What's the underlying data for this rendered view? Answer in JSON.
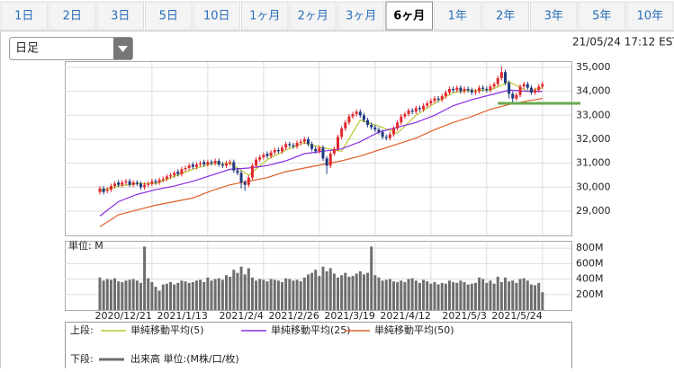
{
  "tabs": [
    "1日",
    "2日",
    "3日",
    "5日",
    "10日",
    "1ヶ月",
    "2ヶ月",
    "3ヶ月",
    "6ヶ月",
    "1年",
    "2年",
    "3年",
    "5年",
    "10年"
  ],
  "selected_tab": 8,
  "dropdown": "日足",
  "timestamp": "21/05/24 17:12 EST",
  "legend_labels": [
    "上段:",
    "下段:"
  ],
  "chart_data": [
    {
      "type": "candlestick",
      "up_color": "#e0282d",
      "down_color": "#203a80",
      "ylim": [
        27990,
        35260
      ],
      "yticks": [
        {
          "value": 29000,
          "label": "29,000"
        },
        {
          "value": 30000,
          "label": "30,000"
        },
        {
          "value": 31000,
          "label": "31,000"
        },
        {
          "value": 32000,
          "label": "32,000"
        },
        {
          "value": 33000,
          "label": "33,000"
        },
        {
          "value": 34000,
          "label": "34,000"
        },
        {
          "value": 35000,
          "label": "35,000"
        }
      ],
      "grid": true,
      "open": [
        29800,
        29950,
        29850,
        29900,
        30050,
        30200,
        30100,
        30200,
        30250,
        30100,
        30200,
        30150,
        30000,
        30100,
        30150,
        30250,
        30200,
        30300,
        30350,
        30450,
        30500,
        30650,
        30550,
        30750,
        30800,
        30950,
        30850,
        30950,
        31050,
        30950,
        31050,
        31000,
        31100,
        30950,
        30900,
        31000,
        31050,
        30700,
        30600,
        30200,
        30100,
        30400,
        30900,
        31150,
        31250,
        31400,
        31300,
        31450,
        31550,
        31500,
        31650,
        31800,
        31750,
        31700,
        31850,
        31900,
        32000,
        31800,
        31600,
        31500,
        31650,
        31200,
        30900,
        31400,
        31600,
        32100,
        32450,
        32700,
        32950,
        33050,
        33150,
        33000,
        32800,
        32600,
        32500,
        32400,
        32300,
        32100,
        32050,
        32200,
        32450,
        32700,
        32950,
        33050,
        33200,
        33150,
        33300,
        33250,
        33400,
        33500,
        33600,
        33700,
        33650,
        33800,
        33950,
        34100,
        34050,
        34150,
        34000,
        34100,
        34050,
        33950,
        34000,
        34150,
        34100,
        34050,
        34200,
        34300,
        34550,
        34800,
        34350,
        33900,
        33700,
        33850,
        34200,
        34300,
        34150,
        33950,
        34050,
        34200
      ],
      "high": [
        30050,
        30050,
        30000,
        30150,
        30250,
        30300,
        30300,
        30350,
        30350,
        30300,
        30300,
        30250,
        30200,
        30250,
        30350,
        30350,
        30400,
        30450,
        30550,
        30600,
        30700,
        30750,
        30850,
        30900,
        31000,
        31050,
        31050,
        31100,
        31150,
        31150,
        31150,
        31200,
        31200,
        31050,
        31100,
        31150,
        31150,
        30800,
        30700,
        30300,
        30500,
        31000,
        31250,
        31350,
        31450,
        31500,
        31550,
        31650,
        31650,
        31750,
        31900,
        31900,
        31850,
        31950,
        32000,
        32100,
        32100,
        31900,
        31700,
        31750,
        31750,
        31300,
        31500,
        31700,
        32200,
        32550,
        32800,
        33050,
        33150,
        33250,
        33250,
        33100,
        32900,
        32700,
        32600,
        32500,
        32400,
        32200,
        32300,
        32550,
        32800,
        33050,
        33150,
        33300,
        33300,
        33400,
        33400,
        33500,
        33600,
        33700,
        33800,
        33800,
        33900,
        34050,
        34200,
        34200,
        34250,
        34250,
        34200,
        34200,
        34150,
        34100,
        34250,
        34250,
        34200,
        34300,
        34400,
        34650,
        35050,
        34900,
        34450,
        34000,
        33950,
        34300,
        34400,
        34400,
        34250,
        34150,
        34300,
        34400
      ],
      "low": [
        29700,
        29700,
        29750,
        29800,
        29950,
        30000,
        30000,
        30100,
        30000,
        30000,
        30050,
        29900,
        29900,
        30000,
        30050,
        30100,
        30100,
        30200,
        30250,
        30350,
        30400,
        30450,
        30450,
        30650,
        30700,
        30750,
        30750,
        30850,
        30850,
        30850,
        30900,
        30900,
        30850,
        30800,
        30800,
        30900,
        30600,
        30500,
        29950,
        29850,
        30000,
        30300,
        30800,
        31050,
        31150,
        31200,
        31200,
        31350,
        31400,
        31400,
        31550,
        31650,
        31600,
        31600,
        31750,
        31800,
        31700,
        31500,
        31400,
        31400,
        31100,
        30550,
        30800,
        31300,
        31500,
        32000,
        32350,
        32600,
        32850,
        32950,
        32900,
        32700,
        32500,
        32400,
        32300,
        32200,
        32000,
        31950,
        31950,
        32100,
        32350,
        32600,
        32850,
        32950,
        33050,
        33050,
        33150,
        33150,
        33300,
        33400,
        33500,
        33550,
        33550,
        33700,
        33850,
        33950,
        33950,
        33900,
        33900,
        33950,
        33850,
        33850,
        33900,
        34000,
        33950,
        33950,
        34100,
        34200,
        34450,
        34250,
        33700,
        33550,
        33600,
        33750,
        34100,
        34050,
        33850,
        33850,
        33950,
        34100
      ],
      "close": [
        29950,
        29800,
        29900,
        30050,
        30150,
        30100,
        30200,
        30250,
        30100,
        30200,
        30150,
        30000,
        30100,
        30150,
        30250,
        30200,
        30300,
        30350,
        30450,
        30500,
        30600,
        30550,
        30750,
        30800,
        30900,
        30850,
        30950,
        31000,
        30950,
        31050,
        31000,
        31100,
        30950,
        30900,
        31000,
        31050,
        30700,
        30600,
        30200,
        30100,
        30400,
        30900,
        31150,
        31250,
        31350,
        31300,
        31450,
        31550,
        31500,
        31650,
        31800,
        31750,
        31700,
        31850,
        31900,
        32000,
        31800,
        31600,
        31500,
        31650,
        31200,
        30900,
        31400,
        31600,
        32100,
        32450,
        32700,
        32950,
        33050,
        33150,
        33000,
        32800,
        32600,
        32500,
        32400,
        32300,
        32100,
        32050,
        32200,
        32450,
        32700,
        32950,
        33050,
        33200,
        33150,
        33300,
        33250,
        33400,
        33500,
        33600,
        33700,
        33650,
        33800,
        33950,
        34100,
        34050,
        34150,
        34000,
        34100,
        34050,
        33950,
        34000,
        34150,
        34100,
        34050,
        34200,
        34300,
        34550,
        34800,
        34350,
        33900,
        33700,
        33850,
        34200,
        34300,
        34150,
        33950,
        34050,
        34200,
        34300
      ],
      "overlays": [
        {
          "name": "単純移動平均(5)",
          "color": "#b8c832",
          "x": [
            0,
            5,
            10,
            15,
            20,
            25,
            30,
            35,
            40,
            45,
            50,
            55,
            60,
            65,
            70,
            75,
            80,
            85,
            90,
            95,
            100,
            105,
            110,
            115,
            119
          ],
          "values": [
            29850,
            30050,
            30150,
            30150,
            30450,
            30750,
            30980,
            31000,
            30500,
            31150,
            31550,
            31850,
            31650,
            31500,
            32800,
            32550,
            32250,
            33000,
            33500,
            33950,
            34050,
            34050,
            34400,
            34000,
            34150
          ]
        },
        {
          "name": "単純移動平均(25)",
          "color": "#8a2be2",
          "x": [
            0,
            5,
            10,
            15,
            20,
            25,
            30,
            35,
            40,
            45,
            50,
            55,
            60,
            65,
            70,
            75,
            80,
            85,
            90,
            95,
            100,
            105,
            110,
            115,
            119
          ],
          "values": [
            28800,
            29400,
            29700,
            29900,
            30050,
            30250,
            30500,
            30750,
            30800,
            30900,
            31100,
            31400,
            31500,
            31600,
            31900,
            32300,
            32500,
            32700,
            33000,
            33400,
            33650,
            33850,
            34050,
            34000,
            34000
          ]
        },
        {
          "name": "単純移動平均(50)",
          "color": "#e0602a",
          "x": [
            0,
            5,
            10,
            15,
            20,
            25,
            30,
            35,
            40,
            45,
            50,
            55,
            60,
            65,
            70,
            75,
            80,
            85,
            90,
            95,
            100,
            105,
            110,
            115,
            119
          ],
          "values": [
            28350,
            28850,
            29050,
            29250,
            29400,
            29550,
            29850,
            30100,
            30250,
            30400,
            30650,
            30800,
            30950,
            31100,
            31300,
            31550,
            31800,
            32050,
            32400,
            32700,
            32950,
            33250,
            33450,
            33600,
            33700
          ]
        }
      ],
      "support_line": {
        "value": 33500,
        "x": 107,
        "color": "#6aa84f"
      }
    },
    {
      "type": "bar",
      "name": "出来高 単位:(M株/口/枚)",
      "unit_label": "単位: M",
      "color": "#6e6e6e",
      "ylim": [
        0,
        894
      ],
      "yticks": [
        {
          "value": 200,
          "label": "200M"
        },
        {
          "value": 400,
          "label": "400M"
        },
        {
          "value": 600,
          "label": "600M"
        },
        {
          "value": 800,
          "label": "800M"
        }
      ],
      "xticks": [
        {
          "value": 14,
          "label": "2020/12/21"
        },
        {
          "value": 29,
          "label": "2021/1/13"
        },
        {
          "value": 44,
          "label": "2021/2/4"
        },
        {
          "value": 59,
          "label": "2021/2/26"
        },
        {
          "value": 74,
          "label": "2021/3/19"
        },
        {
          "value": 89,
          "label": "2021/4/12"
        },
        {
          "value": 104,
          "label": "2021/5/3"
        },
        {
          "value": 119,
          "label": "2021/5/24"
        }
      ],
      "values": [
        420,
        380,
        400,
        390,
        410,
        370,
        360,
        380,
        390,
        400,
        380,
        350,
        820,
        410,
        360,
        300,
        250,
        330,
        340,
        360,
        330,
        350,
        380,
        370,
        350,
        360,
        380,
        390,
        360,
        420,
        380,
        400,
        410,
        390,
        450,
        430,
        520,
        480,
        560,
        460,
        540,
        420,
        380,
        400,
        390,
        370,
        400,
        390,
        380,
        360,
        410,
        400,
        380,
        390,
        370,
        420,
        460,
        480,
        520,
        440,
        560,
        500,
        540,
        470,
        420,
        450,
        480,
        430,
        440,
        470,
        500,
        460,
        480,
        820,
        450,
        420,
        380,
        390,
        400,
        370,
        360,
        380,
        360,
        400,
        410,
        380,
        350,
        390,
        370,
        340,
        360,
        330,
        350,
        340,
        380,
        360,
        350,
        380,
        360,
        330,
        340,
        350,
        420,
        400,
        350,
        380,
        340,
        430,
        360,
        420,
        370,
        380,
        350,
        400,
        410,
        380,
        330,
        320,
        350,
        230
      ]
    }
  ]
}
